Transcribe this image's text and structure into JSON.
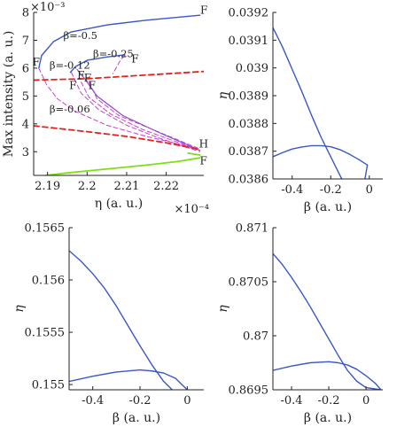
{
  "colors": {
    "blue": "#3a57c8",
    "red": "#e8221b",
    "magenta": "#cc3fd0",
    "green": "#7ce016",
    "violet": "#8a4fc9",
    "axis": "#222222"
  },
  "chart_data": [
    {
      "id": "top-left",
      "type": "line",
      "xlabel": "η (a. u.)",
      "ylabel": "Max intensity (a. u.)",
      "x_exponent": "×10⁻⁴",
      "y_exponent": "×10⁻³",
      "xlim": [
        2.1865,
        2.2295
      ],
      "ylim": [
        2.15,
        8.0
      ],
      "xticks": [
        2.19,
        2.2,
        2.21,
        2.22
      ],
      "xtick_labels": [
        "2.19",
        "2.2",
        "2.21",
        "2.22"
      ],
      "yticks": [
        3,
        4,
        5,
        6,
        7,
        8
      ],
      "ytick_labels": [
        "3",
        "4",
        "5",
        "6",
        "7",
        "8"
      ],
      "series": [
        {
          "style": "blue-solid",
          "points": [
            [
              2.1878,
              6.0
            ],
            [
              2.1885,
              6.45
            ],
            [
              2.1915,
              6.95
            ],
            [
              2.196,
              7.3
            ],
            [
              2.205,
              7.55
            ],
            [
              2.215,
              7.72
            ],
            [
              2.2285,
              7.9
            ]
          ]
        },
        {
          "style": "blue-solid",
          "points": [
            [
              2.1958,
              5.85
            ],
            [
              2.197,
              6.05
            ],
            [
              2.2,
              6.28
            ],
            [
              2.205,
              6.4
            ],
            [
              2.2095,
              6.48
            ]
          ]
        },
        {
          "style": "magenta-dashed",
          "points": [
            [
              2.2095,
              6.45
            ],
            [
              2.2085,
              6.3
            ],
            [
              2.2065,
              5.8
            ]
          ]
        },
        {
          "style": "magenta-dashed",
          "points": [
            [
              2.1878,
              6.0
            ],
            [
              2.1898,
              5.4
            ],
            [
              2.1925,
              4.9
            ],
            [
              2.197,
              4.45
            ],
            [
              2.205,
              3.95
            ],
            [
              2.215,
              3.55
            ],
            [
              2.224,
              3.25
            ],
            [
              2.2285,
              3.05
            ]
          ]
        },
        {
          "style": "magenta-dashed",
          "points": [
            [
              2.196,
              5.85
            ],
            [
              2.1985,
              5.1
            ],
            [
              2.203,
              4.5
            ],
            [
              2.21,
              3.95
            ],
            [
              2.218,
              3.5
            ],
            [
              2.2285,
              3.0
            ]
          ]
        },
        {
          "style": "magenta-dashed",
          "points": [
            [
              2.1985,
              5.5
            ],
            [
              2.2005,
              4.95
            ],
            [
              2.206,
              4.35
            ],
            [
              2.214,
              3.8
            ],
            [
              2.2285,
              3.05
            ]
          ]
        },
        {
          "style": "magenta-dashed",
          "points": [
            [
              2.2005,
              5.5
            ],
            [
              2.2025,
              4.9
            ],
            [
              2.208,
              4.3
            ],
            [
              2.2285,
              3.1
            ]
          ]
        },
        {
          "style": "violet-solid",
          "points": [
            [
              2.1975,
              5.95
            ],
            [
              2.1995,
              5.6
            ],
            [
              2.2025,
              5.0
            ],
            [
              2.209,
              4.3
            ],
            [
              2.218,
              3.7
            ],
            [
              2.2285,
              3.05
            ]
          ]
        },
        {
          "style": "red-dashed",
          "points": [
            [
              2.1865,
              5.57
            ],
            [
              2.2,
              5.62
            ],
            [
              2.2295,
              5.88
            ]
          ]
        },
        {
          "style": "red-dashed",
          "points": [
            [
              2.1865,
              3.93
            ],
            [
              2.2,
              3.72
            ],
            [
              2.21,
              3.55
            ],
            [
              2.22,
              3.32
            ],
            [
              2.2285,
              3.08
            ]
          ]
        },
        {
          "style": "green-solid",
          "points": [
            [
              2.1895,
              2.15
            ],
            [
              2.195,
              2.24
            ],
            [
              2.205,
              2.38
            ],
            [
              2.215,
              2.52
            ],
            [
              2.223,
              2.65
            ],
            [
              2.2285,
              2.78
            ]
          ]
        },
        {
          "style": "green-solid",
          "points": [
            [
              2.2255,
              2.95
            ],
            [
              2.2285,
              2.88
            ]
          ]
        }
      ],
      "annotations": [
        {
          "text": "β=-0.5",
          "x": 2.194,
          "y": 7.05
        },
        {
          "text": "β=-0.25",
          "x": 2.2015,
          "y": 6.4
        },
        {
          "text": "β=-0.12",
          "x": 2.1905,
          "y": 5.98
        },
        {
          "text": "β=-0.06",
          "x": 2.1905,
          "y": 4.4
        },
        {
          "text": "F",
          "x": 2.2286,
          "y": 7.95
        },
        {
          "text": "F",
          "x": 2.1862,
          "y": 6.1
        },
        {
          "text": "F",
          "x": 2.2112,
          "y": 6.2
        },
        {
          "text": "F",
          "x": 2.1975,
          "y": 5.62
        },
        {
          "text": "F",
          "x": 2.1992,
          "y": 5.52
        },
        {
          "text": "F",
          "x": 2.1955,
          "y": 5.25
        },
        {
          "text": "F",
          "x": 2.2003,
          "y": 5.25
        },
        {
          "text": "H",
          "x": 2.2283,
          "y": 3.15
        },
        {
          "text": "F",
          "x": 2.2285,
          "y": 2.55
        }
      ]
    },
    {
      "id": "top-right",
      "type": "line",
      "xlabel": "β (a. u.)",
      "ylabel": "η",
      "xlim": [
        -0.5,
        0.07
      ],
      "ylim": [
        0.0386,
        0.0392
      ],
      "xticks": [
        -0.4,
        -0.2,
        0
      ],
      "xtick_labels": [
        "-0.4",
        "-0.2",
        "0"
      ],
      "yticks": [
        0.0386,
        0.0387,
        0.0388,
        0.0389,
        0.039,
        0.0391,
        0.0392
      ],
      "ytick_labels": [
        "0.0386",
        "0.0387",
        "0.0388",
        "0.0389",
        "0.039",
        "0.0391",
        "0.0392"
      ],
      "series": [
        {
          "style": "blue-solid",
          "points": [
            [
              -0.5,
              0.039145
            ],
            [
              -0.45,
              0.039075
            ],
            [
              -0.4,
              0.038995
            ],
            [
              -0.35,
              0.038915
            ],
            [
              -0.3,
              0.03883
            ],
            [
              -0.25,
              0.03875
            ],
            [
              -0.2,
              0.03868
            ],
            [
              -0.15,
              0.03861
            ],
            [
              -0.1,
              0.038545
            ],
            [
              -0.05,
              0.03849
            ],
            [
              -0.01,
              0.03865
            ]
          ]
        },
        {
          "style": "blue-solid",
          "points": [
            [
              -0.5,
              0.03868
            ],
            [
              -0.45,
              0.038695
            ],
            [
              -0.4,
              0.038708
            ],
            [
              -0.35,
              0.038715
            ],
            [
              -0.3,
              0.03872
            ],
            [
              -0.25,
              0.03872
            ],
            [
              -0.2,
              0.038716
            ],
            [
              -0.15,
              0.038705
            ],
            [
              -0.1,
              0.038688
            ],
            [
              -0.05,
              0.038668
            ],
            [
              -0.01,
              0.03865
            ]
          ]
        }
      ]
    },
    {
      "id": "bottom-left",
      "type": "line",
      "xlabel": "β (a. u.)",
      "ylabel": "η",
      "xlim": [
        -0.5,
        0.07
      ],
      "ylim": [
        0.15495,
        0.1565
      ],
      "xticks": [
        -0.4,
        -0.2,
        0
      ],
      "xtick_labels": [
        "-0.4",
        "-0.2",
        "0"
      ],
      "yticks": [
        0.155,
        0.1555,
        0.156,
        0.1565
      ],
      "ytick_labels": [
        "0.155",
        "0.1555",
        "0.156",
        "0.1565"
      ],
      "series": [
        {
          "style": "blue-solid",
          "points": [
            [
              -0.5,
              0.15628
            ],
            [
              -0.45,
              0.15618
            ],
            [
              -0.4,
              0.15606
            ],
            [
              -0.35,
              0.15592
            ],
            [
              -0.3,
              0.15575
            ],
            [
              -0.25,
              0.15556
            ],
            [
              -0.2,
              0.15537
            ],
            [
              -0.15,
              0.15519
            ],
            [
              -0.1,
              0.15503
            ],
            [
              -0.05,
              0.15492
            ],
            [
              0,
              0.15495
            ]
          ]
        },
        {
          "style": "blue-solid",
          "points": [
            [
              -0.5,
              0.15503
            ],
            [
              -0.4,
              0.15508
            ],
            [
              -0.3,
              0.15512
            ],
            [
              -0.2,
              0.15514
            ],
            [
              -0.15,
              0.15513
            ],
            [
              -0.1,
              0.15511
            ],
            [
              -0.05,
              0.15506
            ],
            [
              0,
              0.15495
            ]
          ]
        }
      ]
    },
    {
      "id": "bottom-right",
      "type": "line",
      "xlabel": "β (a. u.)",
      "ylabel": "η",
      "xlim": [
        -0.5,
        0.09
      ],
      "ylim": [
        0.8695,
        0.871
      ],
      "xticks": [
        -0.4,
        -0.2,
        0
      ],
      "xtick_labels": [
        "-0.4",
        "-0.2",
        "0"
      ],
      "yticks": [
        0.8695,
        0.87,
        0.8705,
        0.871
      ],
      "ytick_labels": [
        "0.8695",
        "0.87",
        "0.8705",
        "0.871"
      ],
      "series": [
        {
          "style": "blue-solid",
          "points": [
            [
              -0.5,
              0.87076
            ],
            [
              -0.45,
              0.87066
            ],
            [
              -0.4,
              0.87054
            ],
            [
              -0.35,
              0.87041
            ],
            [
              -0.3,
              0.87027
            ],
            [
              -0.25,
              0.87012
            ],
            [
              -0.2,
              0.86997
            ],
            [
              -0.15,
              0.86982
            ],
            [
              -0.1,
              0.86968
            ],
            [
              -0.05,
              0.86958
            ],
            [
              0,
              0.86952
            ],
            [
              0.08,
              0.8695
            ]
          ]
        },
        {
          "style": "blue-solid",
          "points": [
            [
              -0.5,
              0.86968
            ],
            [
              -0.4,
              0.86972
            ],
            [
              -0.3,
              0.86975
            ],
            [
              -0.2,
              0.86976
            ],
            [
              -0.15,
              0.86975
            ],
            [
              -0.1,
              0.86973
            ],
            [
              -0.05,
              0.86969
            ],
            [
              0,
              0.86963
            ],
            [
              0.05,
              0.86956
            ],
            [
              0.08,
              0.8695
            ]
          ]
        }
      ]
    }
  ]
}
